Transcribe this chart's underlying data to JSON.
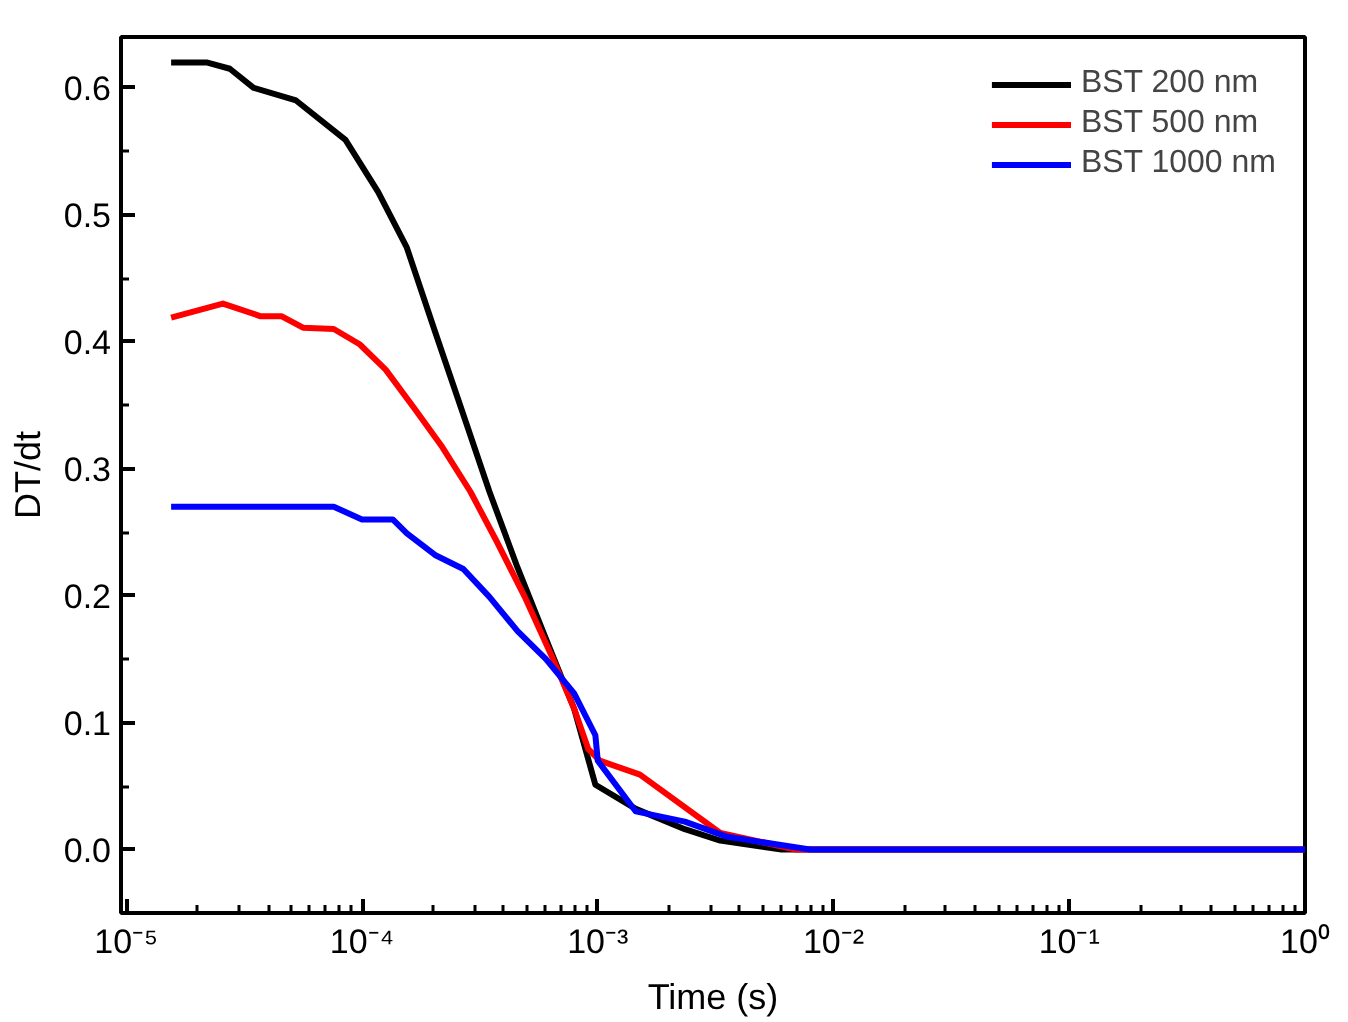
{
  "chart_data": {
    "type": "line",
    "xlabel": "Time (s)",
    "ylabel": "DT/dt",
    "log": "x",
    "xlim": [
      9.5e-06,
      1
    ],
    "ylim": [
      -0.05,
      0.64
    ],
    "xticks": [
      {
        "value": 1e-05,
        "label": "10⁻⁵"
      },
      {
        "value": 0.0001,
        "label": "10⁻⁴"
      },
      {
        "value": 0.001,
        "label": "10⁻³"
      },
      {
        "value": 0.01,
        "label": "10⁻²"
      },
      {
        "value": 0.1,
        "label": "10⁻¹"
      },
      {
        "value": 1,
        "label": "10⁰"
      }
    ],
    "yticks": [
      {
        "value": 0,
        "label": "0.0"
      },
      {
        "value": 0.1,
        "label": "0.1"
      },
      {
        "value": 0.2,
        "label": "0.2"
      },
      {
        "value": 0.3,
        "label": "0.3"
      },
      {
        "value": 0.4,
        "label": "0.4"
      },
      {
        "value": 0.5,
        "label": "0.5"
      },
      {
        "value": 0.6,
        "label": "0.6"
      }
    ],
    "grid": false,
    "legend": "top right",
    "marker": "none",
    "line_style": "solid",
    "series": [
      {
        "name": "BST 200 nm",
        "color": "#000000",
        "x": [
          1.55e-05,
          2.19e-05,
          2.75e-05,
          3.47e-05,
          5.25e-05,
          8.51e-05,
          0.000117,
          0.000155,
          0.000204,
          0.000263,
          0.000347,
          0.000457,
          0.000603,
          0.000794,
          0.000977,
          0.00145,
          0.00234,
          0.00331,
          0.00603,
          1
        ],
        "values": [
          0.62,
          0.62,
          0.615,
          0.6,
          0.59,
          0.559,
          0.518,
          0.474,
          0.408,
          0.348,
          0.282,
          0.222,
          0.166,
          0.111,
          0.051,
          0.032,
          0.016,
          0.007,
          0,
          0
        ]
      },
      {
        "name": "BST 500 nm",
        "color": "#ff0000",
        "x": [
          1.55e-05,
          2.57e-05,
          3.72e-05,
          4.57e-05,
          5.62e-05,
          7.59e-05,
          9.77e-05,
          0.000126,
          0.000166,
          0.000219,
          0.000288,
          0.000372,
          0.00049,
          0.000646,
          0.000794,
          0.000912,
          0.00102,
          0.00151,
          0.00331,
          0.00692,
          1
        ],
        "values": [
          0.419,
          0.43,
          0.42,
          0.42,
          0.411,
          0.41,
          0.398,
          0.378,
          0.348,
          0.317,
          0.282,
          0.243,
          0.199,
          0.15,
          0.111,
          0.079,
          0.07,
          0.059,
          0.013,
          0,
          0
        ]
      },
      {
        "name": "BST 1000 nm",
        "color": "#0000ff",
        "x": [
          1.55e-05,
          7.59e-05,
          0.0001,
          0.000135,
          0.000155,
          0.000204,
          0.000269,
          0.000347,
          0.000457,
          0.000603,
          0.000794,
          0.000977,
          0.001,
          0.00145,
          0.00234,
          0.00355,
          0.00794,
          1
        ],
        "values": [
          0.27,
          0.27,
          0.26,
          0.26,
          0.249,
          0.232,
          0.221,
          0.199,
          0.172,
          0.15,
          0.123,
          0.09,
          0.07,
          0.03,
          0.022,
          0.01,
          0,
          0
        ]
      }
    ]
  }
}
